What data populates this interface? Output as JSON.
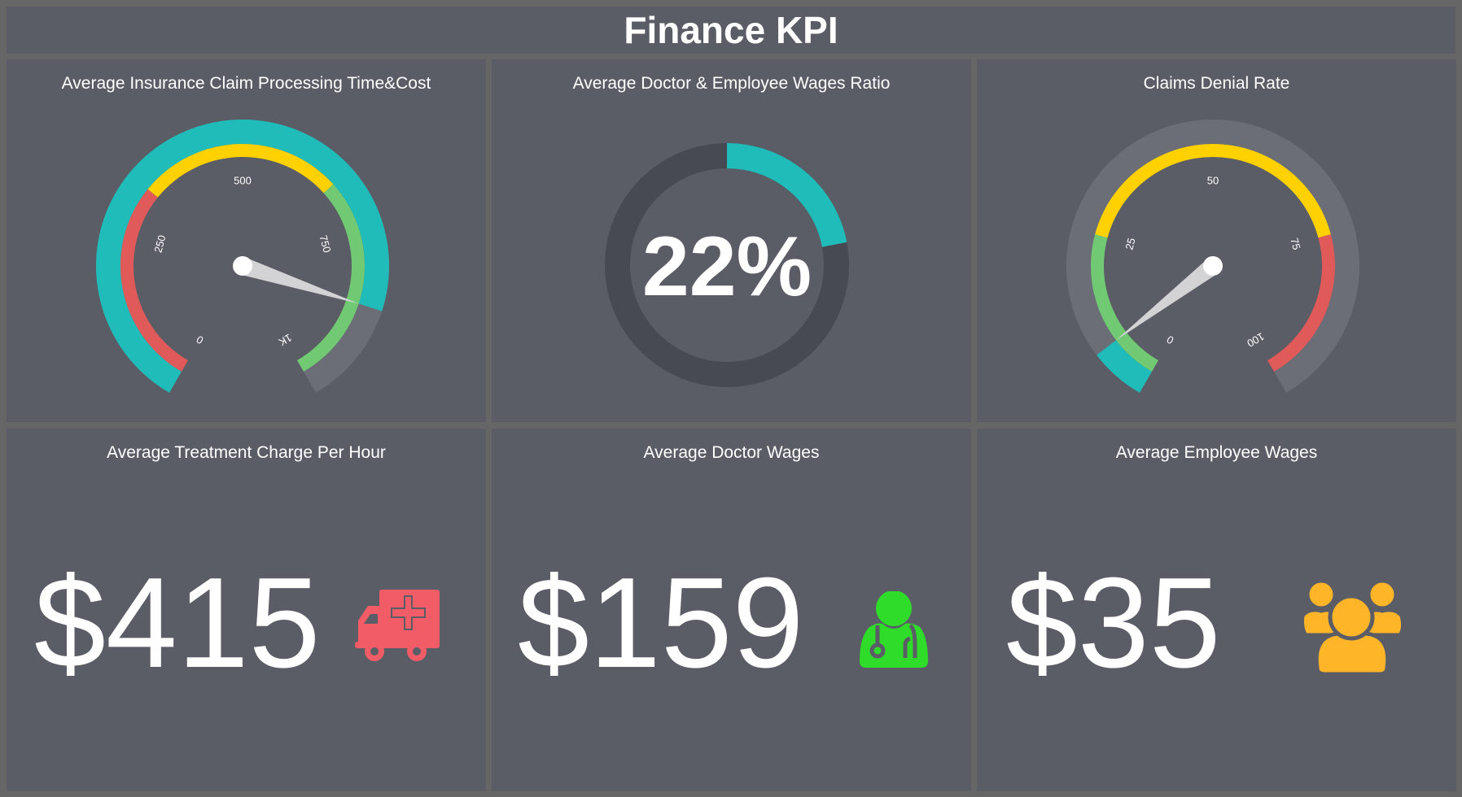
{
  "header": {
    "title": "Finance KPI"
  },
  "colors": {
    "background": "#5a5d66",
    "teal": "#1fbcb9",
    "yellow": "#ffd100",
    "red": "#e05a5a",
    "green": "#72c973",
    "track": "#6b6e77",
    "donut_track": "#474a52",
    "ambulance": "#f25c66",
    "doctor": "#2fdc2a",
    "employees": "#ffb527"
  },
  "panels": [
    {
      "title": "Average Insurance Claim Processing Time&Cost",
      "type": "gauge",
      "min": 0,
      "max": 1000,
      "value": 860,
      "ticks": [
        {
          "v": 0,
          "label": "0"
        },
        {
          "v": 250,
          "label": "250"
        },
        {
          "v": 500,
          "label": "500"
        },
        {
          "v": 750,
          "label": "750"
        },
        {
          "v": 1000,
          "label": "1K"
        }
      ],
      "bands": [
        {
          "from": 0,
          "to": 330,
          "color": "#e05a5a"
        },
        {
          "from": 330,
          "to": 660,
          "color": "#ffd100"
        },
        {
          "from": 660,
          "to": 1000,
          "color": "#72c973"
        }
      ]
    },
    {
      "title": "Average Doctor & Employee Wages Ratio",
      "type": "donut",
      "value": 22,
      "label": "22%"
    },
    {
      "title": "Claims Denial Rate",
      "type": "gauge",
      "min": 0,
      "max": 100,
      "value": 7.5,
      "ticks": [
        {
          "v": 0,
          "label": "0"
        },
        {
          "v": 25,
          "label": "25"
        },
        {
          "v": 50,
          "label": "50"
        },
        {
          "v": 75,
          "label": "75"
        },
        {
          "v": 100,
          "label": "100"
        }
      ],
      "bands": [
        {
          "from": 0,
          "to": 25,
          "color": "#72c973"
        },
        {
          "from": 25,
          "to": 75,
          "color": "#ffd100"
        },
        {
          "from": 75,
          "to": 100,
          "color": "#e05a5a"
        }
      ]
    },
    {
      "title": "Average Treatment Charge Per Hour",
      "value": "$415",
      "icon": "ambulance-icon"
    },
    {
      "title": "Average Doctor Wages",
      "value": "$159",
      "icon": "doctor-icon"
    },
    {
      "title": "Average Employee Wages",
      "value": "$35",
      "icon": "users-icon"
    }
  ]
}
